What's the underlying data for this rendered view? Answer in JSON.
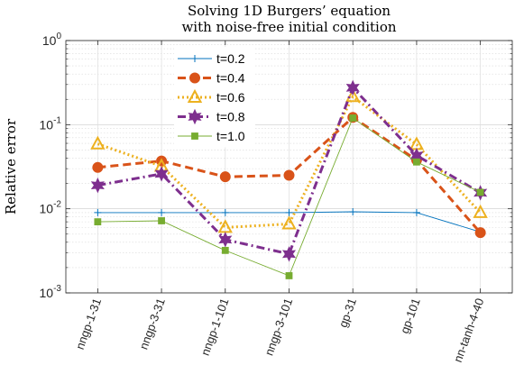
{
  "chart_data": {
    "type": "line",
    "title_lines": [
      "Solving 1D Burgers’ equation",
      "with noise-free initial condition"
    ],
    "ylabel": "Relative error",
    "xlabel": "",
    "y_scale": "log",
    "ylim": [
      0.001,
      1
    ],
    "y_ticks": [
      {
        "value": 0.001,
        "base": "10",
        "exp": "-3"
      },
      {
        "value": 0.01,
        "base": "10",
        "exp": "-2"
      },
      {
        "value": 0.1,
        "base": "10",
        "exp": "-1"
      },
      {
        "value": 1,
        "base": "10",
        "exp": "0"
      }
    ],
    "grid": true,
    "legend_position": "top-left",
    "categories": [
      "nngp-1-31",
      "nngp-3-31",
      "nngp-1-101",
      "nngp-3-101",
      "gp-31",
      "gp-101",
      "nn-tanh-4-40"
    ],
    "series": [
      {
        "name": "t=0.2",
        "color": "#0072BD",
        "marker": "plus",
        "line": "solid",
        "values": [
          0.009,
          0.009,
          0.009,
          0.009,
          0.0092,
          0.009,
          0.0053
        ]
      },
      {
        "name": "t=0.4",
        "color": "#D95319",
        "marker": "circle",
        "line": "dashed",
        "values": [
          0.031,
          0.037,
          0.024,
          0.025,
          0.122,
          0.038,
          0.0052
        ]
      },
      {
        "name": "t=0.6",
        "color": "#EDB120",
        "marker": "triangle",
        "line": "dotted",
        "values": [
          0.059,
          0.032,
          0.006,
          0.0066,
          0.215,
          0.058,
          0.009
        ]
      },
      {
        "name": "t=0.8",
        "color": "#7E2F8E",
        "marker": "hexagram",
        "line": "dashdot",
        "values": [
          0.019,
          0.026,
          0.0043,
          0.0029,
          0.275,
          0.043,
          0.0155
        ]
      },
      {
        "name": "t=1.0",
        "color": "#77AC30",
        "marker": "square",
        "line": "solid",
        "values": [
          0.007,
          0.0072,
          0.0032,
          0.0016,
          0.12,
          0.036,
          0.0157
        ]
      }
    ]
  }
}
